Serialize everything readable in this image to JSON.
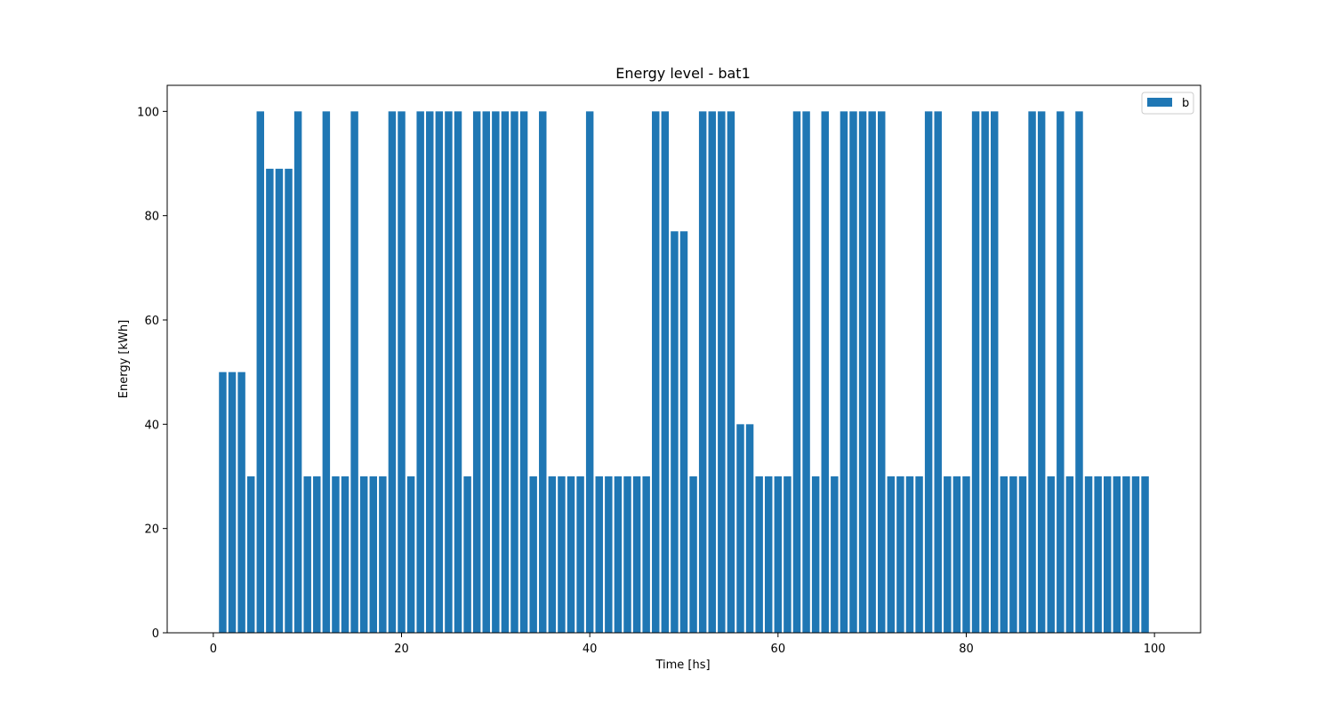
{
  "chart_data": {
    "type": "bar",
    "title": "Energy level - bat1",
    "xlabel": "Time [hs]",
    "ylabel": "Energy [kWh]",
    "xlim": [
      -4.9,
      104.9
    ],
    "ylim": [
      0,
      105
    ],
    "xticks": [
      0,
      20,
      40,
      60,
      80,
      100
    ],
    "yticks": [
      0,
      20,
      40,
      60,
      80,
      100
    ],
    "grid": false,
    "legend_position": "top-right",
    "bar_color": "#1f77b4",
    "x": [
      1,
      2,
      3,
      4,
      5,
      6,
      7,
      8,
      9,
      10,
      11,
      12,
      13,
      14,
      15,
      16,
      17,
      18,
      19,
      20,
      21,
      22,
      23,
      24,
      25,
      26,
      27,
      28,
      29,
      30,
      31,
      32,
      33,
      34,
      35,
      36,
      37,
      38,
      39,
      40,
      41,
      42,
      43,
      44,
      45,
      46,
      47,
      48,
      49,
      50,
      51,
      52,
      53,
      54,
      55,
      56,
      57,
      58,
      59,
      60,
      61,
      62,
      63,
      64,
      65,
      66,
      67,
      68,
      69,
      70,
      71,
      72,
      73,
      74,
      75,
      76,
      77,
      78,
      79,
      80,
      81,
      82,
      83,
      84,
      85,
      86,
      87,
      88,
      89,
      90,
      91,
      92,
      93,
      94,
      95,
      96,
      97,
      98,
      99
    ],
    "series": [
      {
        "name": "b",
        "values": [
          50,
          50,
          50,
          30,
          100,
          89,
          89,
          89,
          100,
          30,
          30,
          100,
          30,
          30,
          100,
          30,
          30,
          30,
          100,
          100,
          30,
          100,
          100,
          100,
          100,
          100,
          30,
          100,
          100,
          100,
          100,
          100,
          100,
          30,
          100,
          30,
          30,
          30,
          30,
          100,
          30,
          30,
          30,
          30,
          30,
          30,
          100,
          100,
          77,
          77,
          30,
          100,
          100,
          100,
          100,
          40,
          40,
          30,
          30,
          30,
          30,
          100,
          100,
          30,
          100,
          30,
          100,
          100,
          100,
          100,
          100,
          30,
          30,
          30,
          30,
          100,
          100,
          30,
          30,
          30,
          100,
          100,
          100,
          30,
          30,
          30,
          100,
          100,
          30,
          100,
          30,
          100,
          30,
          30,
          30,
          30,
          30,
          30,
          30
        ]
      }
    ]
  }
}
